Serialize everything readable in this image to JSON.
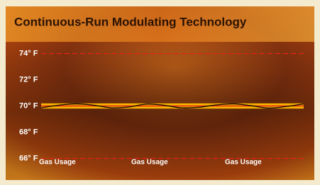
{
  "chart_data": {
    "type": "line",
    "title": "Continuous-Run Modulating Technology",
    "categories": [
      null,
      null,
      null,
      null,
      null,
      null,
      null,
      null,
      null,
      null,
      null,
      null,
      null,
      null,
      null,
      null
    ],
    "series": [
      {
        "color": "#1a0d05",
        "values": [
          69.86,
          70.06,
          70.16,
          70.06,
          69.86,
          69.92,
          70.14,
          70.06,
          69.86,
          69.9,
          70.08,
          70.16,
          70.02,
          69.84,
          69.96,
          70.16
        ]
      }
    ],
    "ylim": [
      65,
      75
    ],
    "yticks": [
      {
        "value": 74,
        "label": "74° F"
      },
      {
        "value": 72,
        "label": "72° F"
      },
      {
        "value": 70,
        "label": "70° F"
      },
      {
        "value": 68,
        "label": "68° F"
      },
      {
        "value": 66,
        "label": "66° F"
      }
    ],
    "limits": [
      74,
      66
    ],
    "limit_color": "#e3231b",
    "band": [
      69.8,
      70.2
    ],
    "band_color": "#f6b400",
    "target": 70,
    "target_color": "#e3231b",
    "annotations": [
      "Gas Usage",
      "Gas Usage",
      "Gas Usage"
    ]
  }
}
